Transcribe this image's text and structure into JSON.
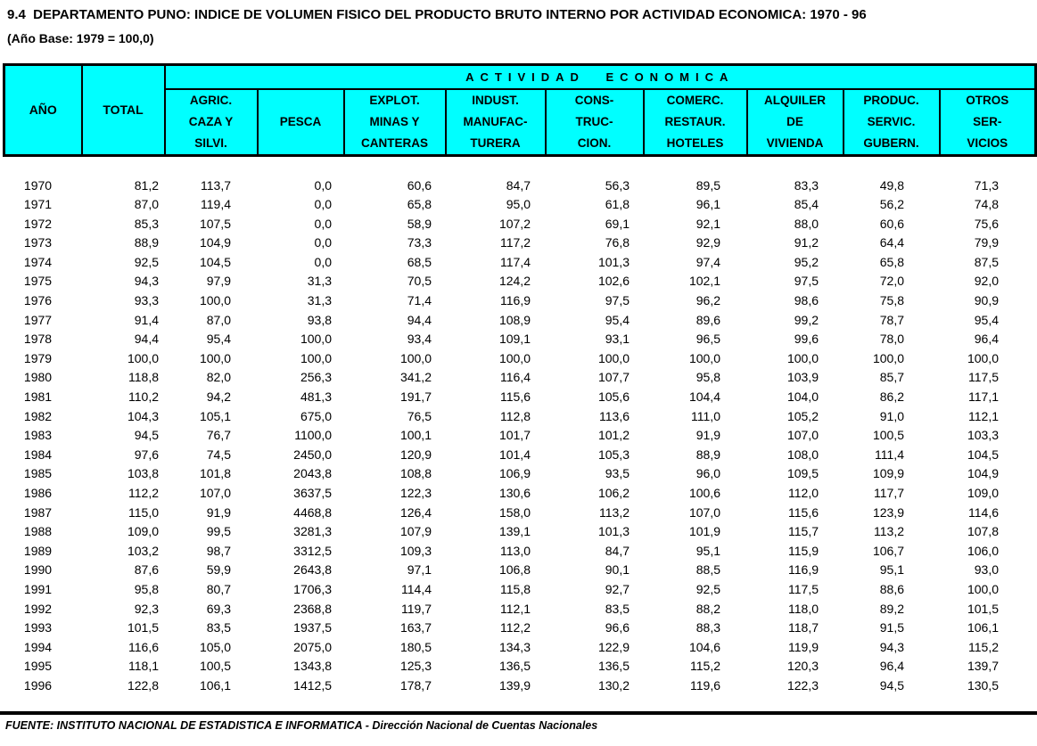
{
  "page": {
    "title": "9.4  DEPARTAMENTO PUNO: INDICE DE VOLUMEN FISICO DEL PRODUCTO BRUTO INTERNO POR ACTIVIDAD ECONOMICA: 1970 - 96",
    "subtitle": "(Año Base: 1979 = 100,0)",
    "footer": "FUENTE: INSTITUTO NACIONAL DE ESTADISTICA E INFORMATICA - Dirección Nacional de Cuentas Nacionales"
  },
  "colors": {
    "header_fill": "#00FFFF",
    "border": "#000000",
    "text": "#000000",
    "background": "#FFFFFF"
  },
  "table": {
    "year_header": "AÑO",
    "total_header": "TOTAL",
    "group_header": "ACTIVIDAD ECONOMICA",
    "activity_columns": [
      {
        "key": "agric-caza-silvi",
        "lines": [
          "AGRIC.",
          "CAZA Y",
          "SILVI."
        ]
      },
      {
        "key": "pesca",
        "lines": [
          "PESCA"
        ]
      },
      {
        "key": "explot-minas-canteras",
        "lines": [
          "EXPLOT.",
          "MINAS Y",
          "CANTERAS"
        ]
      },
      {
        "key": "indust-manufacturera",
        "lines": [
          "INDUST.",
          "MANUFAC-",
          "TURERA"
        ]
      },
      {
        "key": "construccion",
        "lines": [
          "CONS-",
          "TRUC-",
          "CION."
        ]
      },
      {
        "key": "comerc-restaur-hoteles",
        "lines": [
          "COMERC.",
          "RESTAUR.",
          "HOTELES"
        ]
      },
      {
        "key": "alquiler-de-vivienda",
        "lines": [
          "ALQUILER",
          "DE",
          "VIVIENDA"
        ]
      },
      {
        "key": "produc-servic-gubern",
        "lines": [
          "PRODUC.",
          "SERVIC.",
          "GUBERN."
        ]
      },
      {
        "key": "otros-servicios",
        "lines": [
          "OTROS",
          "SER-",
          "VICIOS"
        ]
      }
    ],
    "rows": [
      [
        "1970",
        "81,2",
        "113,7",
        "0,0",
        "60,6",
        "84,7",
        "56,3",
        "89,5",
        "83,3",
        "49,8",
        "71,3"
      ],
      [
        "1971",
        "87,0",
        "119,4",
        "0,0",
        "65,8",
        "95,0",
        "61,8",
        "96,1",
        "85,4",
        "56,2",
        "74,8"
      ],
      [
        "1972",
        "85,3",
        "107,5",
        "0,0",
        "58,9",
        "107,2",
        "69,1",
        "92,1",
        "88,0",
        "60,6",
        "75,6"
      ],
      [
        "1973",
        "88,9",
        "104,9",
        "0,0",
        "73,3",
        "117,2",
        "76,8",
        "92,9",
        "91,2",
        "64,4",
        "79,9"
      ],
      [
        "1974",
        "92,5",
        "104,5",
        "0,0",
        "68,5",
        "117,4",
        "101,3",
        "97,4",
        "95,2",
        "65,8",
        "87,5"
      ],
      [
        "1975",
        "94,3",
        "97,9",
        "31,3",
        "70,5",
        "124,2",
        "102,6",
        "102,1",
        "97,5",
        "72,0",
        "92,0"
      ],
      [
        "1976",
        "93,3",
        "100,0",
        "31,3",
        "71,4",
        "116,9",
        "97,5",
        "96,2",
        "98,6",
        "75,8",
        "90,9"
      ],
      [
        "1977",
        "91,4",
        "87,0",
        "93,8",
        "94,4",
        "108,9",
        "95,4",
        "89,6",
        "99,2",
        "78,7",
        "95,4"
      ],
      [
        "1978",
        "94,4",
        "95,4",
        "100,0",
        "93,4",
        "109,1",
        "93,1",
        "96,5",
        "99,6",
        "78,0",
        "96,4"
      ],
      [
        "1979",
        "100,0",
        "100,0",
        "100,0",
        "100,0",
        "100,0",
        "100,0",
        "100,0",
        "100,0",
        "100,0",
        "100,0"
      ],
      [
        "1980",
        "118,8",
        "82,0",
        "256,3",
        "341,2",
        "116,4",
        "107,7",
        "95,8",
        "103,9",
        "85,7",
        "117,5"
      ],
      [
        "1981",
        "110,2",
        "94,2",
        "481,3",
        "191,7",
        "115,6",
        "105,6",
        "104,4",
        "104,0",
        "86,2",
        "117,1"
      ],
      [
        "1982",
        "104,3",
        "105,1",
        "675,0",
        "76,5",
        "112,8",
        "113,6",
        "111,0",
        "105,2",
        "91,0",
        "112,1"
      ],
      [
        "1983",
        "94,5",
        "76,7",
        "1100,0",
        "100,1",
        "101,7",
        "101,2",
        "91,9",
        "107,0",
        "100,5",
        "103,3"
      ],
      [
        "1984",
        "97,6",
        "74,5",
        "2450,0",
        "120,9",
        "101,4",
        "105,3",
        "88,9",
        "108,0",
        "111,4",
        "104,5"
      ],
      [
        "1985",
        "103,8",
        "101,8",
        "2043,8",
        "108,8",
        "106,9",
        "93,5",
        "96,0",
        "109,5",
        "109,9",
        "104,9"
      ],
      [
        "1986",
        "112,2",
        "107,0",
        "3637,5",
        "122,3",
        "130,6",
        "106,2",
        "100,6",
        "112,0",
        "117,7",
        "109,0"
      ],
      [
        "1987",
        "115,0",
        "91,9",
        "4468,8",
        "126,4",
        "158,0",
        "113,2",
        "107,0",
        "115,6",
        "123,9",
        "114,6"
      ],
      [
        "1988",
        "109,0",
        "99,5",
        "3281,3",
        "107,9",
        "139,1",
        "101,3",
        "101,9",
        "115,7",
        "113,2",
        "107,8"
      ],
      [
        "1989",
        "103,2",
        "98,7",
        "3312,5",
        "109,3",
        "113,0",
        "84,7",
        "95,1",
        "115,9",
        "106,7",
        "106,0"
      ],
      [
        "1990",
        "87,6",
        "59,9",
        "2643,8",
        "97,1",
        "106,8",
        "90,1",
        "88,5",
        "116,9",
        "95,1",
        "93,0"
      ],
      [
        "1991",
        "95,8",
        "80,7",
        "1706,3",
        "114,4",
        "115,8",
        "92,7",
        "92,5",
        "117,5",
        "88,6",
        "100,0"
      ],
      [
        "1992",
        "92,3",
        "69,3",
        "2368,8",
        "119,7",
        "112,1",
        "83,5",
        "88,2",
        "118,0",
        "89,2",
        "101,5"
      ],
      [
        "1993",
        "101,5",
        "83,5",
        "1937,5",
        "163,7",
        "112,2",
        "96,6",
        "88,3",
        "118,7",
        "91,5",
        "106,1"
      ],
      [
        "1994",
        "116,6",
        "105,0",
        "2075,0",
        "180,5",
        "134,3",
        "122,9",
        "104,6",
        "119,9",
        "94,3",
        "115,2"
      ],
      [
        "1995",
        "118,1",
        "100,5",
        "1343,8",
        "125,3",
        "136,5",
        "136,5",
        "115,2",
        "120,3",
        "96,4",
        "139,7"
      ],
      [
        "1996",
        "122,8",
        "106,1",
        "1412,5",
        "178,7",
        "139,9",
        "130,2",
        "119,6",
        "122,3",
        "94,5",
        "130,5"
      ]
    ]
  }
}
